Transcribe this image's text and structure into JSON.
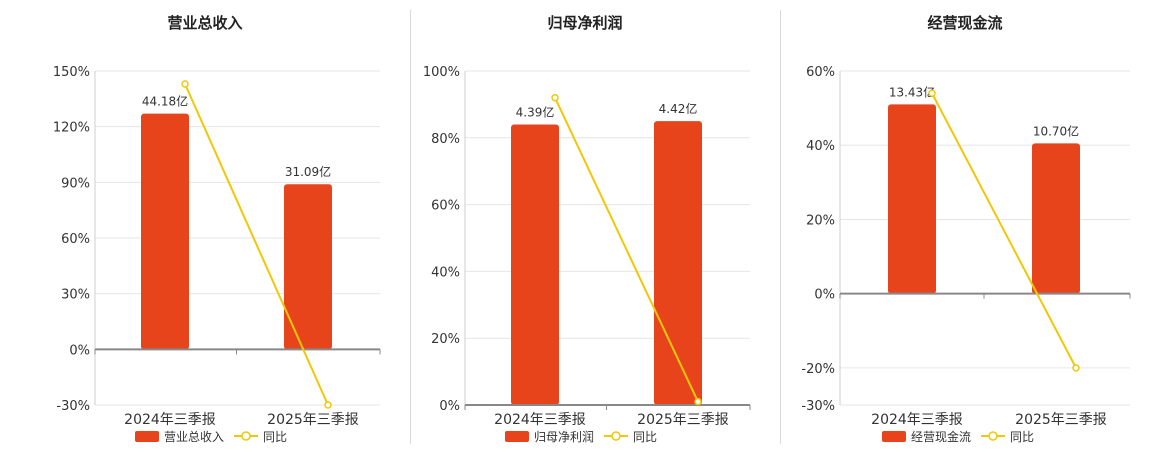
{
  "colors": {
    "bar": "#e8441c",
    "line": "#f0c808",
    "grid": "#e6e6e6",
    "axis": "#888888",
    "text": "#333333"
  },
  "legend": {
    "line_label": "同比"
  },
  "chart_data": [
    {
      "type": "bar",
      "title": "营业总收入",
      "categories": [
        "2024年三季报",
        "2025年三季报"
      ],
      "bar_labels": [
        "44.18亿",
        "31.09亿"
      ],
      "series": [
        {
          "name": "营业总收入",
          "type": "bar",
          "values": [
            127,
            89
          ]
        },
        {
          "name": "同比",
          "type": "line",
          "values": [
            143,
            -30
          ]
        }
      ],
      "yticks": [
        "150%",
        "120%",
        "90%",
        "60%",
        "30%",
        "0%",
        "-30%"
      ],
      "ylim": [
        -30,
        150
      ]
    },
    {
      "type": "bar",
      "title": "归母净利润",
      "categories": [
        "2024年三季报",
        "2025年三季报"
      ],
      "bar_labels": [
        "4.39亿",
        "4.42亿"
      ],
      "series": [
        {
          "name": "归母净利润",
          "type": "bar",
          "values": [
            84,
            85
          ]
        },
        {
          "name": "同比",
          "type": "line",
          "values": [
            92,
            1
          ]
        }
      ],
      "yticks": [
        "100%",
        "80%",
        "60%",
        "40%",
        "20%",
        "0%"
      ],
      "ylim": [
        0,
        100
      ]
    },
    {
      "type": "bar",
      "title": "经营现金流",
      "categories": [
        "2024年三季报",
        "2025年三季报"
      ],
      "bar_labels": [
        "13.43亿",
        "10.70亿"
      ],
      "series": [
        {
          "name": "经营现金流",
          "type": "bar",
          "values": [
            51,
            40.5
          ]
        },
        {
          "name": "同比",
          "type": "line",
          "values": [
            54,
            -20
          ]
        }
      ],
      "yticks": [
        "60%",
        "40%",
        "20%",
        "0%",
        "-20%",
        "-30%"
      ],
      "ylim": [
        -30,
        60
      ]
    }
  ]
}
